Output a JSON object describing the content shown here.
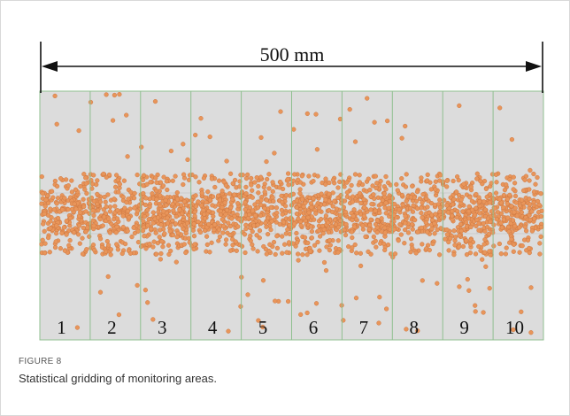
{
  "figure": {
    "dimension_label": "500 mm",
    "zones": [
      "1",
      "2",
      "3",
      "4",
      "5",
      "6",
      "7",
      "8",
      "9",
      "10"
    ]
  },
  "caption": {
    "label": "FIGURE 8",
    "text": "Statistical gridding of monitoring areas."
  }
}
